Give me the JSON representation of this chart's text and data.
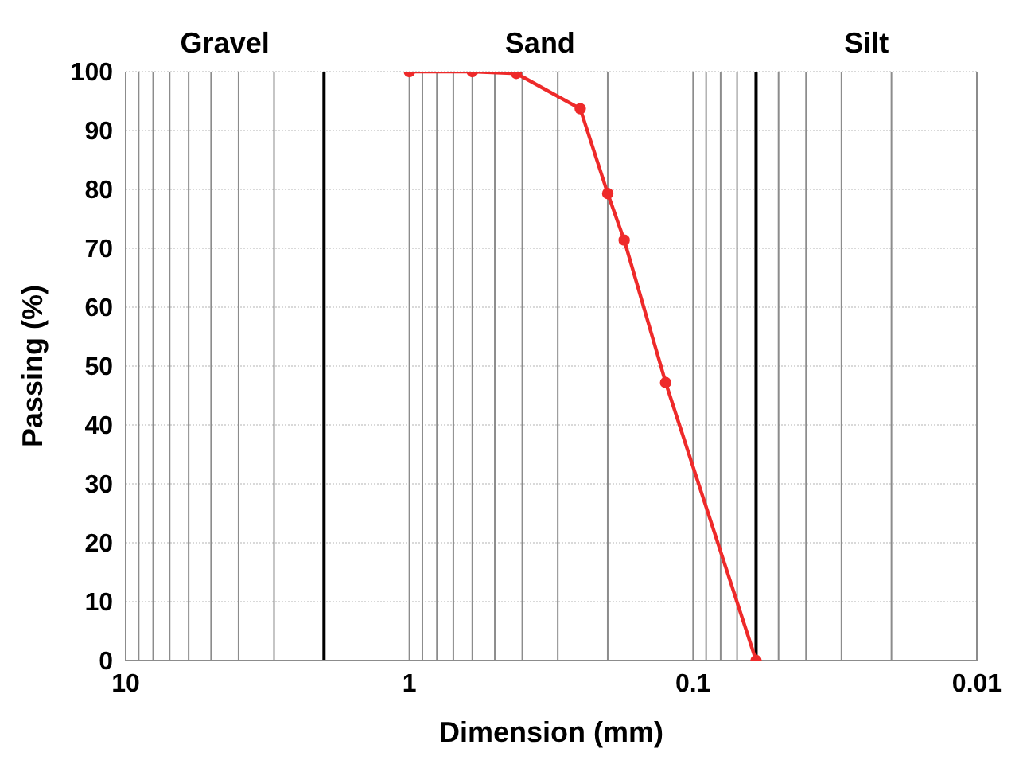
{
  "chart_data": {
    "type": "line",
    "xlabel": "Dimension (mm)",
    "ylabel": "Passing (%)",
    "x": [
      1,
      0.6,
      0.42,
      0.25,
      0.2,
      0.175,
      0.125,
      0.06
    ],
    "series": [
      {
        "color": "#ee2a2a",
        "values": [
          100,
          100,
          99.7,
          93.7,
          79.3,
          71.4,
          47.2,
          0
        ]
      }
    ],
    "log": "x",
    "xlim": [
      10,
      0.01
    ],
    "xticks": [
      10,
      {
        "value": 9,
        "label": null
      },
      {
        "value": 8,
        "label": null
      },
      {
        "value": 7,
        "label": null
      },
      {
        "value": 6,
        "label": null
      },
      {
        "value": 5,
        "label": null
      },
      {
        "value": 4,
        "label": null
      },
      {
        "value": 3,
        "label": null
      },
      1,
      {
        "value": 0.9,
        "label": null
      },
      {
        "value": 0.8,
        "label": null
      },
      {
        "value": 0.7,
        "label": null
      },
      {
        "value": 0.6,
        "label": null
      },
      {
        "value": 0.5,
        "label": null
      },
      {
        "value": 0.4,
        "label": null
      },
      {
        "value": 0.3,
        "label": null
      },
      {
        "value": 0.2,
        "label": null
      },
      0.1,
      {
        "value": 0.09,
        "label": null
      },
      {
        "value": 0.08,
        "label": null
      },
      {
        "value": 0.07,
        "label": null
      },
      {
        "value": 0.05,
        "label": null
      },
      {
        "value": 0.04,
        "label": null
      },
      {
        "value": 0.03,
        "label": null
      },
      {
        "value": 0.02,
        "label": null
      },
      0.01
    ],
    "ylim": [
      0,
      100
    ],
    "yticks": [
      0,
      10,
      20,
      30,
      40,
      50,
      60,
      70,
      80,
      90,
      100
    ],
    "grid": true,
    "marker": "circle",
    "line_style": "solid",
    "ref_lines": [
      {
        "axis": "x",
        "value": 2,
        "color": "#000000"
      },
      {
        "axis": "x",
        "value": 0.06,
        "color": "#000000"
      }
    ],
    "annotations": [
      "Gravel",
      "Sand",
      "Silt"
    ]
  }
}
